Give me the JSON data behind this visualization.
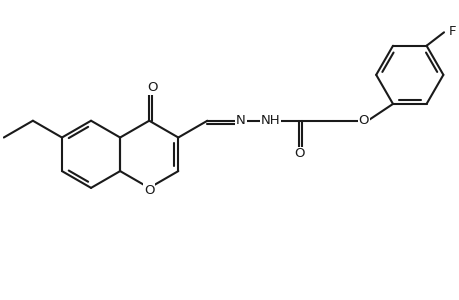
{
  "background_color": "#ffffff",
  "line_color": "#1a1a1a",
  "line_width": 1.5,
  "font_size": 9.5,
  "figsize": [
    4.6,
    3.0
  ],
  "dpi": 100,
  "xlim": [
    0,
    10.5
  ],
  "ylim": [
    1.0,
    7.5
  ]
}
